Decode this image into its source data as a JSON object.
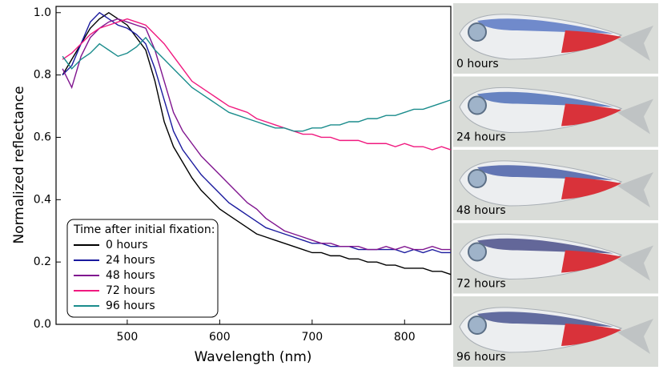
{
  "chart_data": {
    "type": "line",
    "x_label": "Wavelength (nm)",
    "y_label": "Normalized reflectance",
    "legend_title": "Time after initial fixation:",
    "legend_position": "lower left",
    "x": [
      430,
      440,
      450,
      460,
      470,
      480,
      490,
      500,
      510,
      520,
      530,
      540,
      550,
      560,
      570,
      580,
      590,
      600,
      610,
      620,
      630,
      640,
      650,
      660,
      670,
      680,
      690,
      700,
      710,
      720,
      730,
      740,
      750,
      760,
      770,
      780,
      790,
      800,
      810,
      820,
      830,
      840,
      850
    ],
    "series": [
      {
        "name": "0 hours",
        "color": "#000000",
        "values": [
          0.8,
          0.85,
          0.9,
          0.95,
          0.98,
          1.0,
          0.98,
          0.96,
          0.92,
          0.88,
          0.78,
          0.65,
          0.57,
          0.52,
          0.47,
          0.43,
          0.4,
          0.37,
          0.35,
          0.33,
          0.31,
          0.29,
          0.28,
          0.27,
          0.26,
          0.25,
          0.24,
          0.23,
          0.23,
          0.22,
          0.22,
          0.21,
          0.21,
          0.2,
          0.2,
          0.19,
          0.19,
          0.18,
          0.18,
          0.18,
          0.17,
          0.17,
          0.16
        ]
      },
      {
        "name": "24 hours",
        "color": "#1a1a9e",
        "values": [
          0.8,
          0.83,
          0.9,
          0.97,
          1.0,
          0.98,
          0.96,
          0.95,
          0.93,
          0.9,
          0.82,
          0.72,
          0.62,
          0.56,
          0.52,
          0.48,
          0.45,
          0.42,
          0.39,
          0.37,
          0.35,
          0.33,
          0.31,
          0.3,
          0.29,
          0.28,
          0.27,
          0.26,
          0.26,
          0.25,
          0.25,
          0.25,
          0.24,
          0.24,
          0.24,
          0.24,
          0.24,
          0.23,
          0.24,
          0.23,
          0.24,
          0.23,
          0.23
        ]
      },
      {
        "name": "48 hours",
        "color": "#80158f",
        "values": [
          0.82,
          0.76,
          0.86,
          0.92,
          0.95,
          0.97,
          0.98,
          0.97,
          0.96,
          0.95,
          0.88,
          0.78,
          0.68,
          0.62,
          0.58,
          0.54,
          0.51,
          0.48,
          0.45,
          0.42,
          0.39,
          0.37,
          0.34,
          0.32,
          0.3,
          0.29,
          0.28,
          0.27,
          0.26,
          0.26,
          0.25,
          0.25,
          0.25,
          0.24,
          0.24,
          0.25,
          0.24,
          0.25,
          0.24,
          0.24,
          0.25,
          0.24,
          0.24
        ]
      },
      {
        "name": "72 hours",
        "color": "#f0197f",
        "values": [
          0.85,
          0.87,
          0.9,
          0.93,
          0.95,
          0.96,
          0.97,
          0.98,
          0.97,
          0.96,
          0.93,
          0.9,
          0.86,
          0.82,
          0.78,
          0.76,
          0.74,
          0.72,
          0.7,
          0.69,
          0.68,
          0.66,
          0.65,
          0.64,
          0.63,
          0.62,
          0.61,
          0.61,
          0.6,
          0.6,
          0.59,
          0.59,
          0.59,
          0.58,
          0.58,
          0.58,
          0.57,
          0.58,
          0.57,
          0.57,
          0.56,
          0.57,
          0.56
        ]
      },
      {
        "name": "96 hours",
        "color": "#1a8c8c",
        "values": [
          0.86,
          0.82,
          0.85,
          0.87,
          0.9,
          0.88,
          0.86,
          0.87,
          0.89,
          0.92,
          0.88,
          0.85,
          0.82,
          0.79,
          0.76,
          0.74,
          0.72,
          0.7,
          0.68,
          0.67,
          0.66,
          0.65,
          0.64,
          0.63,
          0.63,
          0.62,
          0.62,
          0.63,
          0.63,
          0.64,
          0.64,
          0.65,
          0.65,
          0.66,
          0.66,
          0.67,
          0.67,
          0.68,
          0.69,
          0.69,
          0.7,
          0.71,
          0.72
        ]
      }
    ],
    "xlim": [
      423,
      850
    ],
    "xticks": [
      500,
      600,
      700,
      800
    ],
    "ylim": [
      0,
      1.02
    ],
    "yticks": [
      {
        "value": 0,
        "label": "0.0"
      },
      0.2,
      0.4,
      0.6,
      0.8,
      {
        "value": 1,
        "label": "1.0"
      }
    ]
  },
  "photo_labels": [
    "0 hours",
    "24 hours",
    "48 hours",
    "72 hours",
    "96 hours"
  ]
}
